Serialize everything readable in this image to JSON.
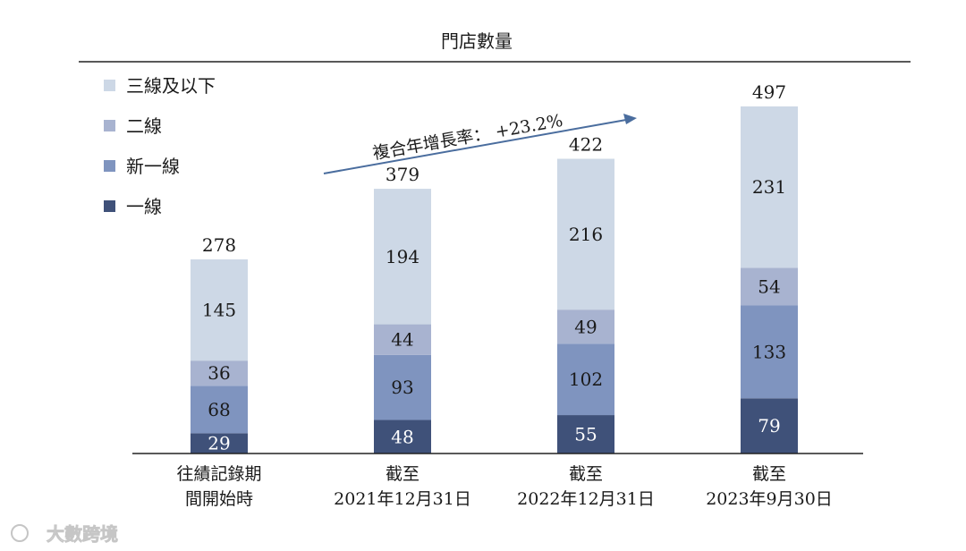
{
  "chart_data": {
    "type": "bar",
    "stacked": true,
    "title": "門店數量",
    "categories": [
      [
        "往績記錄期",
        "間開始時"
      ],
      [
        "截至",
        "2021年12月31日"
      ],
      [
        "截至",
        "2022年12月31日"
      ],
      [
        "截至",
        "2023年9月30日"
      ]
    ],
    "series": [
      {
        "name": "一線",
        "color": "#3f5179",
        "values": [
          29,
          48,
          55,
          79
        ]
      },
      {
        "name": "新一線",
        "color": "#7f94bf",
        "values": [
          68,
          93,
          102,
          133
        ]
      },
      {
        "name": "二線",
        "color": "#a8b3d0",
        "values": [
          36,
          44,
          49,
          54
        ]
      },
      {
        "name": "三線及以下",
        "color": "#cdd8e6",
        "values": [
          145,
          194,
          216,
          231
        ]
      }
    ],
    "totals": [
      278,
      379,
      422,
      497
    ],
    "legend_order": [
      "三線及以下",
      "二線",
      "新一線",
      "一線"
    ],
    "legend_position": "top-left",
    "annotation": "複合年增長率： +23.2%",
    "ylim": [
      0,
      520
    ]
  },
  "watermark": "大數跨境"
}
